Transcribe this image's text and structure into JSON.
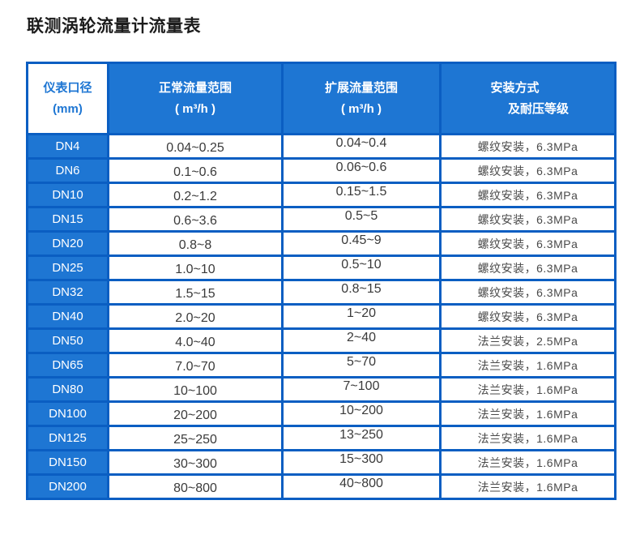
{
  "page": {
    "title": "联测涡轮流量计流量表"
  },
  "colors": {
    "fill_blue": "#1e76d3",
    "border_blue": "#0a5ec2",
    "header_text": "#ffffff",
    "body_text": "#3d3d3d"
  },
  "table": {
    "header": {
      "diameter": {
        "line1": "仪表口径",
        "line2": "(mm)"
      },
      "normal_range": {
        "line1": "正常流量范围",
        "line2": "( m³/h )"
      },
      "extended_range": {
        "line1": "扩展流量范围",
        "line2": "( m³/h )"
      },
      "installation": {
        "line1": "安装方式",
        "line2": "及耐压等级"
      }
    },
    "rows": [
      {
        "dn": "DN4",
        "normal": "0.04~0.25",
        "extended": "0.04~0.4",
        "install": "螺纹安装，6.3MPa"
      },
      {
        "dn": "DN6",
        "normal": "0.1~0.6",
        "extended": "0.06~0.6",
        "install": "螺纹安装，6.3MPa"
      },
      {
        "dn": "DN10",
        "normal": "0.2~1.2",
        "extended": "0.15~1.5",
        "install": "螺纹安装，6.3MPa"
      },
      {
        "dn": "DN15",
        "normal": "0.6~3.6",
        "extended": "0.5~5",
        "install": "螺纹安装，6.3MPa"
      },
      {
        "dn": "DN20",
        "normal": "0.8~8",
        "extended": "0.45~9",
        "install": "螺纹安装，6.3MPa"
      },
      {
        "dn": "DN25",
        "normal": "1.0~10",
        "extended": "0.5~10",
        "install": "螺纹安装，6.3MPa"
      },
      {
        "dn": "DN32",
        "normal": "1.5~15",
        "extended": "0.8~15",
        "install": "螺纹安装，6.3MPa"
      },
      {
        "dn": "DN40",
        "normal": "2.0~20",
        "extended": "1~20",
        "install": "螺纹安装，6.3MPa"
      },
      {
        "dn": "DN50",
        "normal": "4.0~40",
        "extended": "2~40",
        "install": "法兰安装，2.5MPa"
      },
      {
        "dn": "DN65",
        "normal": "7.0~70",
        "extended": "5~70",
        "install": "法兰安装，1.6MPa"
      },
      {
        "dn": "DN80",
        "normal": "10~100",
        "extended": "7~100",
        "install": "法兰安装，1.6MPa"
      },
      {
        "dn": "DN100",
        "normal": "20~200",
        "extended": "10~200",
        "install": "法兰安装，1.6MPa"
      },
      {
        "dn": "DN125",
        "normal": "25~250",
        "extended": "13~250",
        "install": "法兰安装，1.6MPa"
      },
      {
        "dn": "DN150",
        "normal": "30~300",
        "extended": "15~300",
        "install": "法兰安装，1.6MPa"
      },
      {
        "dn": "DN200",
        "normal": "80~800",
        "extended": "40~800",
        "install": "法兰安装，1.6MPa"
      }
    ]
  }
}
